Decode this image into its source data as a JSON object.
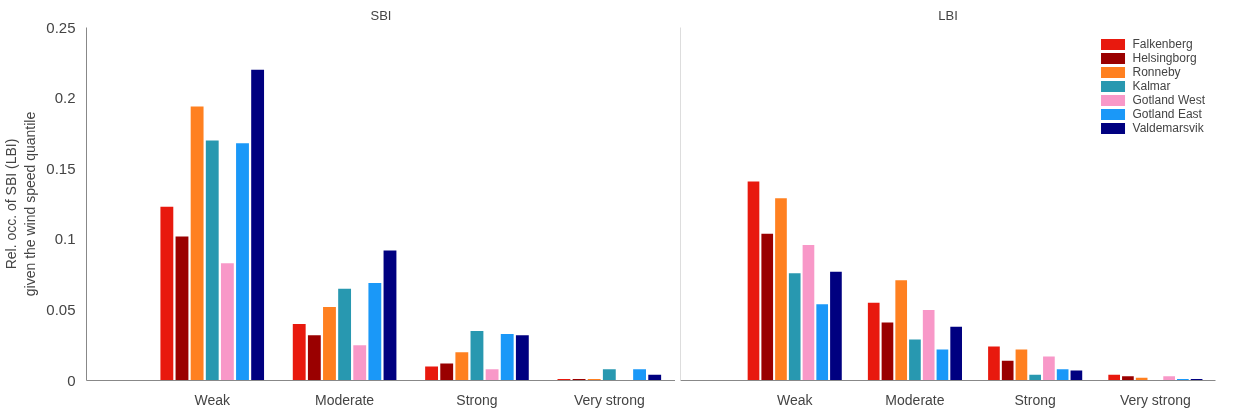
{
  "chart_data": [
    {
      "type": "bar",
      "title": "SBI",
      "ylabel": "Rel. occ. of SBI (LBI)\ngiven the wind speed quantile",
      "categories": [
        "Weak",
        "Moderate",
        "Strong",
        "Very strong"
      ],
      "ylim": [
        0,
        0.25
      ],
      "yticks": [
        0,
        0.05,
        0.1,
        0.15,
        0.2,
        0.25
      ],
      "grid": false,
      "legend": false,
      "series": [
        {
          "color": "#e8190e",
          "values": [
            0.123,
            0.04,
            0.01,
            0.001
          ]
        },
        {
          "color": "#9a0000",
          "values": [
            0.102,
            0.032,
            0.012,
            0.001
          ]
        },
        {
          "color": "#ff8020",
          "values": [
            0.194,
            0.052,
            0.02,
            0.001
          ]
        },
        {
          "color": "#2898b0",
          "values": [
            0.17,
            0.065,
            0.035,
            0.008
          ]
        },
        {
          "color": "#f898c8",
          "values": [
            0.083,
            0.025,
            0.008,
            0
          ]
        },
        {
          "color": "#1a98f8",
          "values": [
            0.168,
            0.069,
            0.033,
            0.008
          ]
        },
        {
          "color": "#000080",
          "values": [
            0.22,
            0.092,
            0.032,
            0.004
          ]
        }
      ]
    },
    {
      "type": "bar",
      "title": "LBI",
      "categories": [
        "Weak",
        "Moderate",
        "Strong",
        "Very strong"
      ],
      "ylim": [
        0,
        0.25
      ],
      "tick_labels": "x",
      "grid": false,
      "legend": "top right",
      "series": [
        {
          "name": "Falkenberg",
          "color": "#e8190e",
          "values": [
            0.141,
            0.055,
            0.024,
            0.004
          ]
        },
        {
          "name": "Helsingborg",
          "color": "#9a0000",
          "values": [
            0.104,
            0.041,
            0.014,
            0.003
          ]
        },
        {
          "name": "Ronneby",
          "color": "#ff8020",
          "values": [
            0.129,
            0.071,
            0.022,
            0.002
          ]
        },
        {
          "name": "Kalmar",
          "color": "#2898b0",
          "values": [
            0.076,
            0.029,
            0.004,
            0
          ]
        },
        {
          "name": "Gotland West",
          "color": "#f898c8",
          "values": [
            0.096,
            0.05,
            0.017,
            0.003
          ]
        },
        {
          "name": "Gotland East",
          "color": "#1a98f8",
          "values": [
            0.054,
            0.022,
            0.008,
            0.001
          ]
        },
        {
          "name": "Valdemarsvik",
          "color": "#000080",
          "values": [
            0.077,
            0.038,
            0.007,
            0.001
          ]
        }
      ]
    }
  ]
}
